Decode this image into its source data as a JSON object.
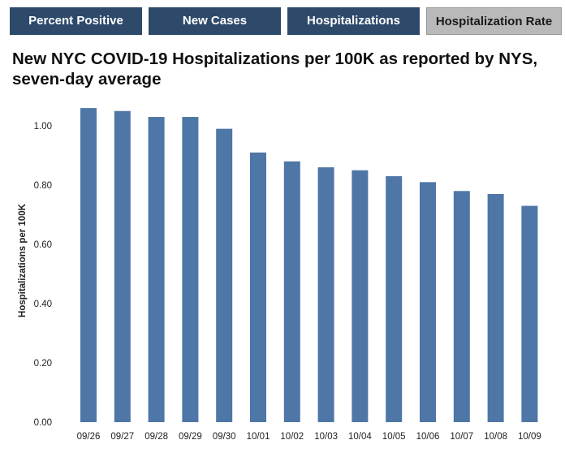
{
  "tabs": [
    {
      "label": "Percent Positive",
      "active": true
    },
    {
      "label": "New Cases",
      "active": true
    },
    {
      "label": "Hospitalizations",
      "active": true
    },
    {
      "label": "Hospitalization Rate",
      "active": false
    }
  ],
  "colors": {
    "tab_dark": "#2e4a6b",
    "tab_selected": "#b9b9b9",
    "bar": "#4e76a6"
  },
  "chart_data": {
    "type": "bar",
    "title": "New NYC COVID-19 Hospitalizations per 100K as reported by NYS, seven-day average",
    "xlabel": "",
    "ylabel": "Hospitalizations per 100K",
    "categories": [
      "09/26",
      "09/27",
      "09/28",
      "09/29",
      "09/30",
      "10/01",
      "10/02",
      "10/03",
      "10/04",
      "10/05",
      "10/06",
      "10/07",
      "10/08",
      "10/09"
    ],
    "values": [
      1.06,
      1.05,
      1.03,
      1.03,
      0.99,
      0.91,
      0.88,
      0.86,
      0.85,
      0.83,
      0.81,
      0.78,
      0.77,
      0.73
    ],
    "ylim": [
      0,
      1.0
    ],
    "yticks": [
      "0.00",
      "0.20",
      "0.40",
      "0.60",
      "0.80",
      "1.00"
    ],
    "grid": false,
    "legend": "none"
  }
}
